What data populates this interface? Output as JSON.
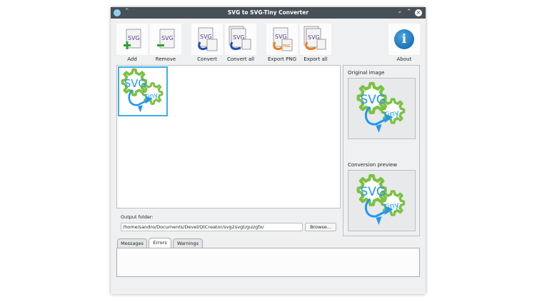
{
  "window": {
    "title": "SVG to SVG-Tiny Converter"
  },
  "toolbar": [
    {
      "label": "Add",
      "icon": "svg-add-icon"
    },
    {
      "label": "Remove",
      "icon": "svg-remove-icon"
    },
    {
      "label": "Convert",
      "icon": "svg-convert-icon"
    },
    {
      "label": "Convert all",
      "icon": "svg-convert-all-icon"
    },
    {
      "label": "Export PNG",
      "icon": "export-png-icon"
    },
    {
      "label": "Export all",
      "icon": "export-all-icon"
    },
    {
      "label": "About",
      "icon": "info-icon"
    }
  ],
  "icon_text": {
    "svg": "SVG",
    "tiny": "Tiny",
    "png": "PNG",
    "info": "i"
  },
  "preview": {
    "original_label": "Original image",
    "conversion_label": "Conversion preview"
  },
  "output": {
    "label": "Output folder:",
    "path": "/home/sandro/Documents/Devel/QtCreator/svg2svgt/gui/gfx/",
    "browse_label": "Browse..."
  },
  "tabs": [
    {
      "label": "Messages",
      "active": false
    },
    {
      "label": "Errors",
      "active": true
    },
    {
      "label": "Warnings",
      "active": false
    }
  ],
  "colors": {
    "titlebar": "#475057",
    "selection": "#3daee9",
    "gear": "#7bc142",
    "logo_blue": "#2196f3"
  }
}
